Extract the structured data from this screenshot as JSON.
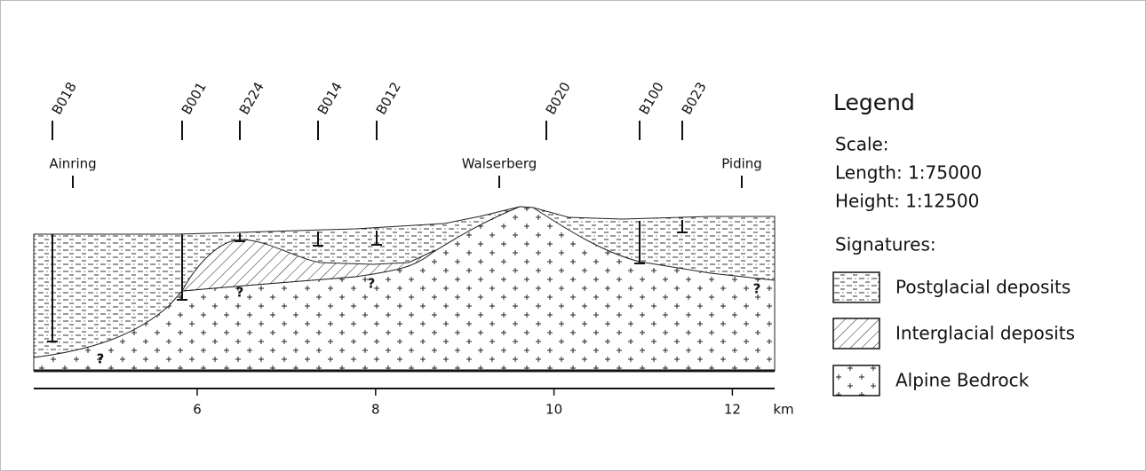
{
  "boreholes": [
    "B018",
    "B001",
    "B224",
    "B014",
    "B012",
    "B020",
    "B100",
    "B023"
  ],
  "places": [
    "Ainring",
    "Walserberg",
    "Piding"
  ],
  "axis": {
    "ticks": [
      6,
      8,
      10,
      12
    ],
    "unit": "km"
  },
  "unknown_marks": [
    "?",
    "?",
    "?",
    "?"
  ],
  "legend": {
    "title": "Legend",
    "scale_title": "Scale:",
    "length": "Length: 1:75000",
    "height": "Height:  1:12500",
    "signatures_title": "Signatures:",
    "items": [
      "Postglacial deposits",
      "Interglacial deposits",
      "Alpine Bedrock"
    ]
  }
}
